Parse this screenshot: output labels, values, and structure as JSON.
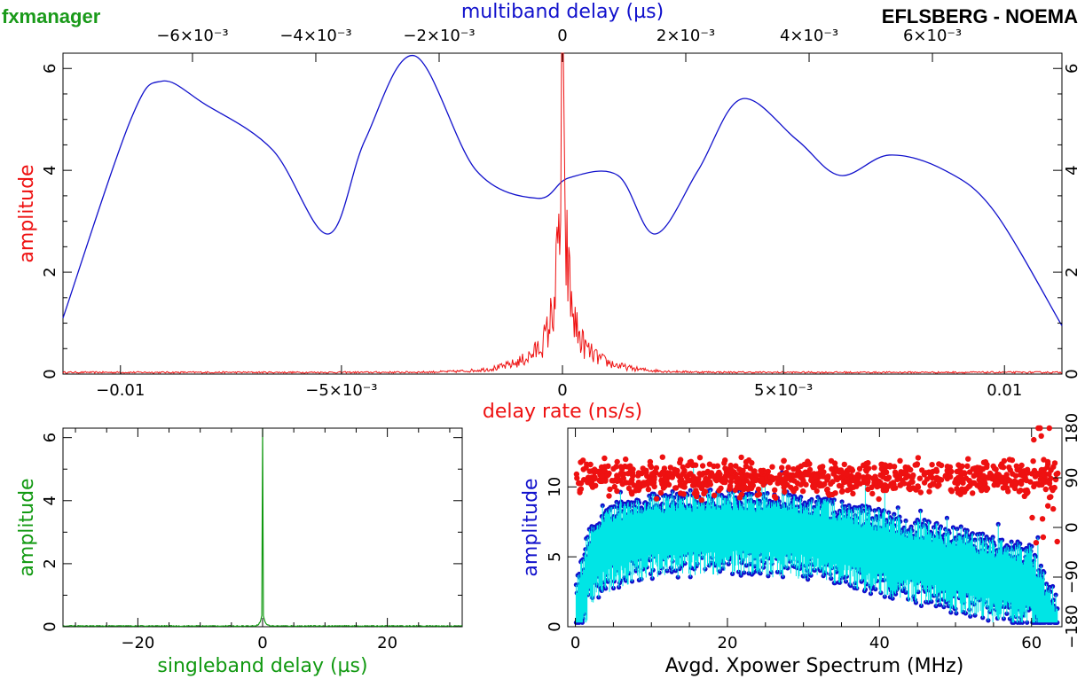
{
  "header": {
    "left_title": "fxmanager",
    "right_title": "EFLSBERG - NOEMA"
  },
  "colors": {
    "red": "#ee1111",
    "blue": "#1111cc",
    "green": "#119911",
    "cyan": "#00e5e5",
    "axis": "#000000"
  },
  "chart_data": [
    {
      "id": "delay-rate",
      "type": "line",
      "title": "",
      "xlabel": "delay rate (ns/s)",
      "ylabel": "amplitude",
      "top_xlabel": "multiband delay (µs)",
      "xlim": [
        -0.0113,
        0.0113
      ],
      "ylim": [
        0,
        6.3
      ],
      "x_ticks": [
        {
          "v": -0.01,
          "label": "−0.01"
        },
        {
          "v": -0.005,
          "label": "−5×10⁻³"
        },
        {
          "v": 0,
          "label": "0"
        },
        {
          "v": 0.005,
          "label": "5×10⁻³"
        },
        {
          "v": 0.01,
          "label": "0.01"
        }
      ],
      "top_ticks": [
        {
          "v": -0.006,
          "label": "−6×10⁻³"
        },
        {
          "v": -0.004,
          "label": "−4×10⁻³"
        },
        {
          "v": -0.002,
          "label": "−2×10⁻³"
        },
        {
          "v": 0,
          "label": "0"
        },
        {
          "v": 0.002,
          "label": "2×10⁻³"
        },
        {
          "v": 0.004,
          "label": "4×10⁻³"
        },
        {
          "v": 0.006,
          "label": "6×10⁻³"
        }
      ],
      "top_xlim": [
        -0.0081,
        0.0081
      ],
      "y_ticks": [
        {
          "v": 0,
          "label": "0"
        },
        {
          "v": 2,
          "label": "2"
        },
        {
          "v": 4,
          "label": "4"
        },
        {
          "v": 6,
          "label": "6"
        }
      ],
      "series": [
        {
          "color": "red",
          "description": "narrow peak near zero rate over a flat noise floor",
          "peak_x": 0.0,
          "peak_y": 6.3,
          "noise_floor": 0.05
        },
        {
          "color": "blue",
          "description": "multiband delay function",
          "x": [
            -0.0081,
            -0.007,
            -0.0065,
            -0.0058,
            -0.0047,
            -0.0038,
            -0.0032,
            -0.0024,
            -0.0014,
            -0.0004,
            0.0001,
            0.0009,
            0.0015,
            0.0022,
            0.0029,
            0.0038,
            0.0045,
            0.0053,
            0.0062,
            0.007,
            0.0081
          ],
          "y": [
            1.1,
            5.0,
            5.75,
            5.3,
            4.4,
            2.75,
            4.6,
            6.25,
            4.0,
            3.45,
            3.85,
            3.9,
            2.75,
            4.0,
            5.4,
            4.6,
            3.9,
            4.3,
            4.0,
            3.2,
            0.95
          ]
        }
      ]
    },
    {
      "id": "singleband-delay",
      "type": "line",
      "title": "",
      "xlabel": "singleband delay (µs)",
      "ylabel": "amplitude",
      "xlim": [
        -32,
        32
      ],
      "ylim": [
        0,
        6.3
      ],
      "x_ticks": [
        {
          "v": -20,
          "label": "−20"
        },
        {
          "v": 0,
          "label": "0"
        },
        {
          "v": 20,
          "label": "20"
        }
      ],
      "y_ticks": [
        {
          "v": 0,
          "label": "0"
        },
        {
          "v": 2,
          "label": "2"
        },
        {
          "v": 4,
          "label": "4"
        },
        {
          "v": 6,
          "label": "6"
        }
      ],
      "series": [
        {
          "color": "green",
          "description": "single spike at zero delay",
          "peak_x": 0,
          "peak_y": 6.3,
          "noise_floor": 0.03
        }
      ]
    },
    {
      "id": "xpower-spectrum",
      "type": "scatter",
      "title": "",
      "xlabel": "Avgd. Xpower Spectrum (MHz)",
      "ylabel": "amplitude",
      "xlim": [
        -1,
        64
      ],
      "ylim": [
        0,
        14.2
      ],
      "phase_ylim": [
        -180,
        180
      ],
      "x_ticks": [
        {
          "v": 0,
          "label": "0"
        },
        {
          "v": 20,
          "label": "20"
        },
        {
          "v": 40,
          "label": "40"
        },
        {
          "v": 60,
          "label": "60"
        }
      ],
      "y_ticks": [
        {
          "v": 0,
          "label": "0"
        },
        {
          "v": 5,
          "label": "5"
        },
        {
          "v": 10,
          "label": "10"
        }
      ],
      "phase_ticks": [
        {
          "v": -180,
          "label": "−180"
        },
        {
          "v": -90,
          "label": "−90"
        },
        {
          "v": 0,
          "label": "0"
        },
        {
          "v": 90,
          "label": "90"
        },
        {
          "v": 180,
          "label": "180"
        }
      ],
      "series": [
        {
          "color": "red",
          "description": "phase (degrees), clustered near +90",
          "center": 90,
          "spread": 22
        },
        {
          "color": "blue",
          "description": "amplitude envelope (points), cyan fill",
          "x": [
            0,
            2,
            5,
            10,
            20,
            30,
            40,
            50,
            60,
            63
          ],
          "y": [
            1.5,
            6.0,
            7.3,
            8.0,
            8.3,
            8.0,
            6.8,
            5.5,
            4.3,
            0.8
          ]
        }
      ]
    }
  ]
}
